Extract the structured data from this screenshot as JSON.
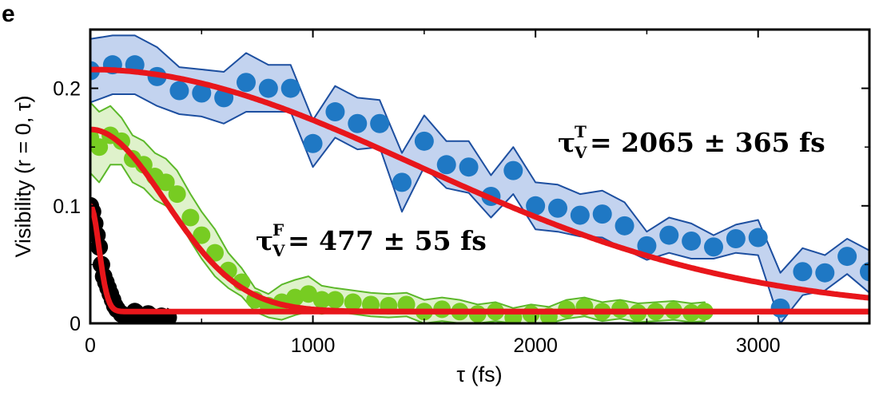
{
  "panel_label": "e",
  "colors": {
    "blue_marker": "#1f78c4",
    "blue_band_fill": "#c3d3ef",
    "blue_band_edge": "#1d4fa0",
    "green_marker": "#77cc22",
    "green_band_fill": "#dff2cb",
    "green_band_edge": "#5cb82a",
    "black_marker": "#000000",
    "fit_line": "#e8161b"
  },
  "chart_data": {
    "type": "scatter",
    "xlabel": "τ (fs)",
    "ylabel": "Visibility (r = 0, τ)",
    "xlim": [
      0,
      3500
    ],
    "ylim": [
      0,
      0.25
    ],
    "xticks": [
      0,
      1000,
      2000,
      3000
    ],
    "xtick_labels": [
      "0",
      "1000",
      "2000",
      "3000"
    ],
    "yticks": [
      0,
      0.1,
      0.2
    ],
    "ytick_labels": [
      "0",
      "0.1",
      "0.2"
    ],
    "grid": false,
    "series": [
      {
        "color": "blue",
        "x": [
          0,
          100,
          200,
          300,
          400,
          500,
          600,
          700,
          800,
          900,
          1000,
          1100,
          1200,
          1300,
          1400,
          1500,
          1600,
          1700,
          1800,
          1900,
          2000,
          2100,
          2200,
          2300,
          2400,
          2500,
          2600,
          2700,
          2800,
          2900,
          3000,
          3100,
          3200,
          3300,
          3400,
          3500
        ],
        "y": [
          0.215,
          0.22,
          0.22,
          0.21,
          0.198,
          0.196,
          0.192,
          0.205,
          0.2,
          0.2,
          0.153,
          0.18,
          0.17,
          0.17,
          0.12,
          0.155,
          0.135,
          0.133,
          0.108,
          0.13,
          0.1,
          0.098,
          0.092,
          0.093,
          0.083,
          0.066,
          0.075,
          0.07,
          0.065,
          0.072,
          0.073,
          0.013,
          0.044,
          0.043,
          0.057,
          0.044
        ],
        "band": [
          0.027,
          0.025,
          0.025,
          0.025,
          0.02,
          0.02,
          0.022,
          0.025,
          0.02,
          0.02,
          0.02,
          0.022,
          0.022,
          0.02,
          0.025,
          0.022,
          0.02,
          0.022,
          0.018,
          0.02,
          0.02,
          0.02,
          0.018,
          0.02,
          0.02,
          0.012,
          0.015,
          0.015,
          0.01,
          0.012,
          0.015,
          0.03,
          0.02,
          0.015,
          0.015,
          0.018
        ]
      },
      {
        "color": "green",
        "x": [
          0,
          40,
          90,
          140,
          190,
          240,
          290,
          340,
          390,
          450,
          500,
          560,
          620,
          680,
          740,
          800,
          860,
          920,
          980,
          1040,
          1100,
          1180,
          1260,
          1340,
          1420,
          1500,
          1580,
          1660,
          1740,
          1820,
          1900,
          1980,
          2060,
          2140,
          2220,
          2300,
          2380,
          2460,
          2540,
          2620,
          2700,
          2760
        ],
        "y": [
          0.158,
          0.15,
          0.16,
          0.155,
          0.14,
          0.135,
          0.125,
          0.12,
          0.11,
          0.09,
          0.075,
          0.06,
          0.045,
          0.035,
          0.02,
          0.015,
          0.018,
          0.022,
          0.025,
          0.02,
          0.02,
          0.018,
          0.016,
          0.015,
          0.016,
          0.01,
          0.012,
          0.01,
          0.008,
          0.01,
          0.005,
          0.008,
          0.006,
          0.012,
          0.014,
          0.01,
          0.012,
          0.009,
          0.01,
          0.011,
          0.009,
          0.01
        ],
        "band": [
          0.03,
          0.03,
          0.025,
          0.02,
          0.02,
          0.02,
          0.02,
          0.02,
          0.02,
          0.02,
          0.02,
          0.02,
          0.015,
          0.012,
          0.01,
          0.01,
          0.015,
          0.015,
          0.015,
          0.012,
          0.01,
          0.01,
          0.01,
          0.01,
          0.01,
          0.01,
          0.01,
          0.01,
          0.008,
          0.008,
          0.008,
          0.008,
          0.008,
          0.008,
          0.008,
          0.008,
          0.008,
          0.008,
          0.008,
          0.008,
          0.008,
          0.008
        ]
      },
      {
        "color": "black",
        "x": [
          0,
          10,
          20,
          30,
          40,
          50,
          60,
          70,
          80,
          90,
          100,
          110,
          120,
          140,
          160,
          180,
          200,
          230,
          260,
          290,
          320,
          350
        ],
        "y": [
          0.1,
          0.095,
          0.085,
          0.075,
          0.065,
          0.05,
          0.04,
          0.035,
          0.03,
          0.025,
          0.02,
          0.015,
          0.012,
          0.008,
          0.005,
          0.004,
          0.01,
          0.006,
          0.008,
          0.004,
          0.006,
          0.005
        ]
      }
    ],
    "fits": [
      {
        "color": "red",
        "series": "blue",
        "amplitude": 0.206,
        "tau": 2065,
        "offset": 0.01
      },
      {
        "color": "red",
        "series": "green",
        "amplitude": 0.155,
        "tau": 477,
        "offset": 0.01
      },
      {
        "color": "red",
        "series": "black",
        "amplitude": 0.09,
        "tau": 55,
        "offset": 0.01
      }
    ],
    "annotations": [
      {
        "main": "τ",
        "sub": "V",
        "sup": "T",
        "rest": " = 2065 ± 365 fs"
      },
      {
        "main": "τ",
        "sub": "V",
        "sup": "F",
        "rest": " = 477 ± 55 fs"
      }
    ]
  }
}
